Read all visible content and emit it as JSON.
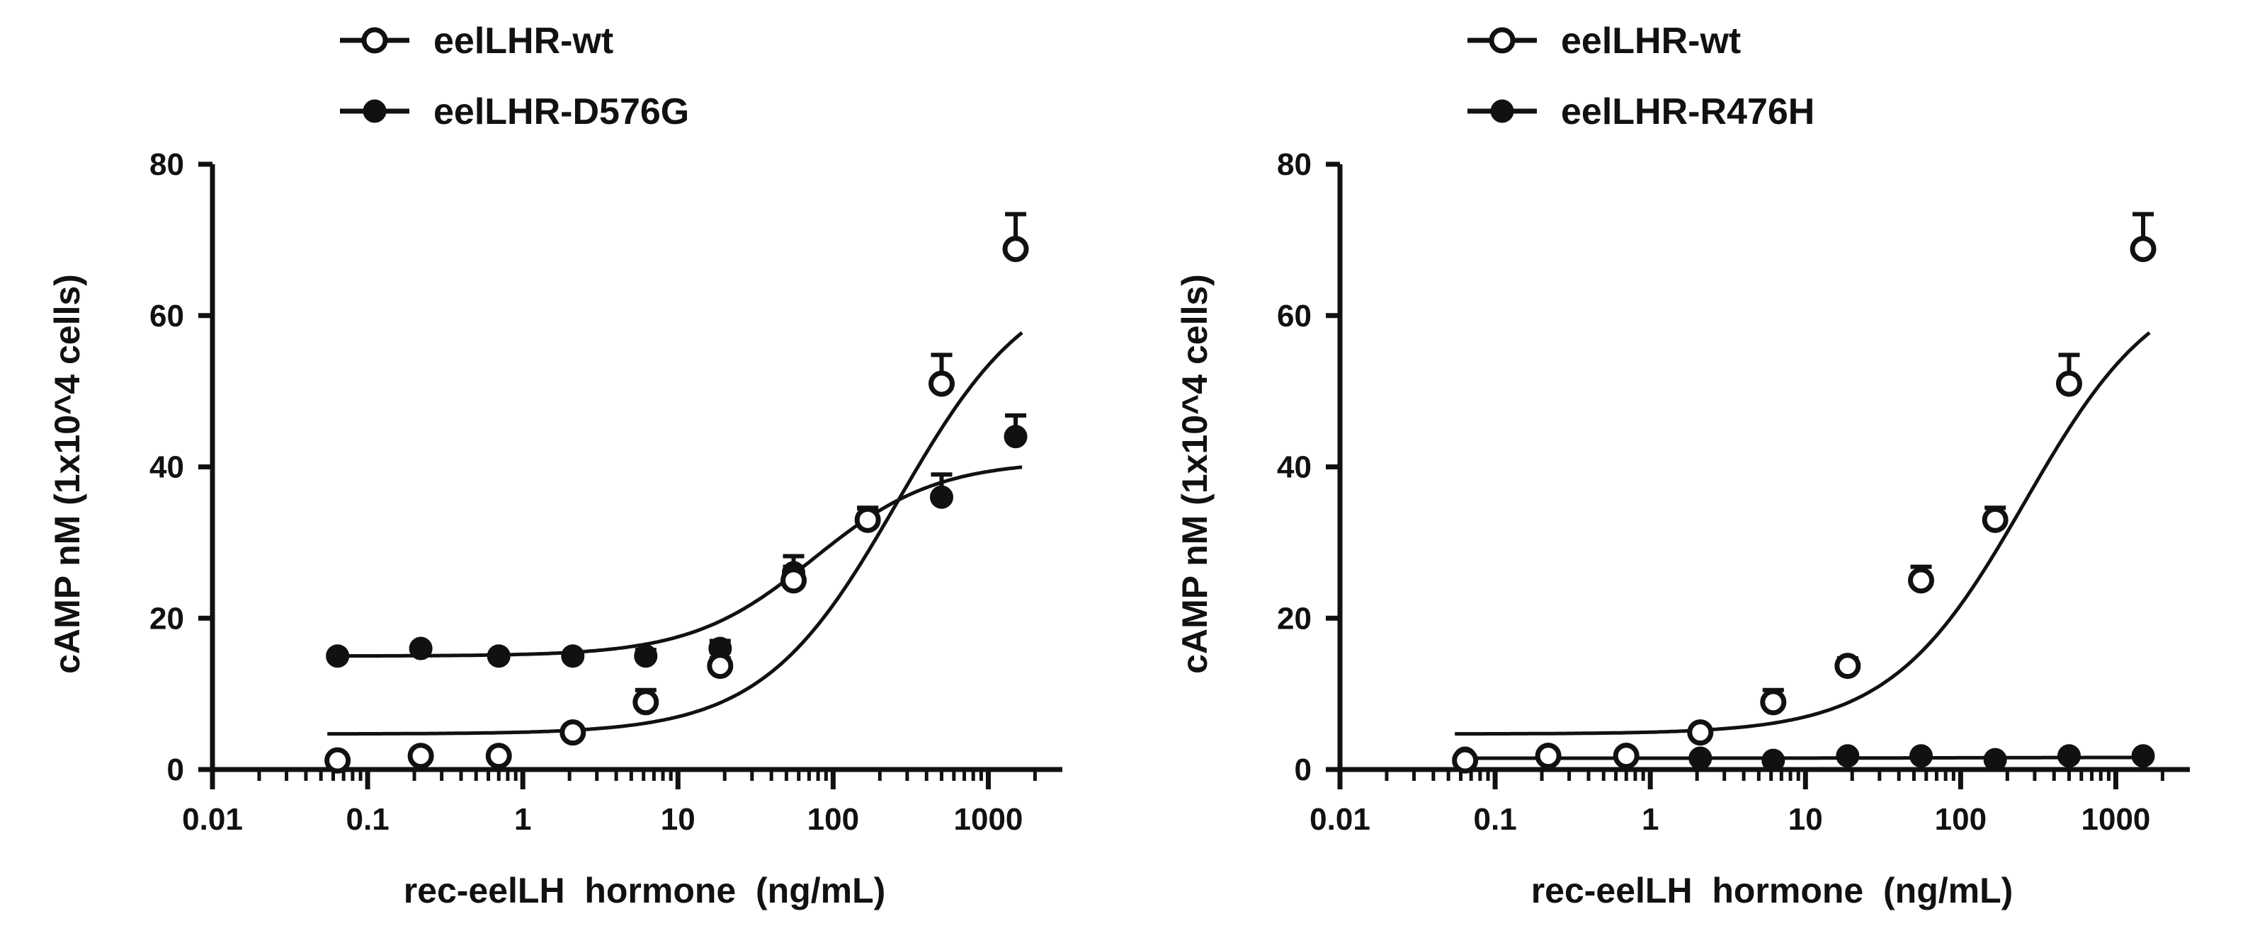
{
  "chart_data": [
    {
      "type": "scatter",
      "xscale": "log",
      "xlabel": "rec-eelLH  hormone  (ng/mL)",
      "ylabel": "cAMP nM (1x10^4 cells)",
      "xlim": [
        0.01,
        3000
      ],
      "ylim": [
        0,
        80
      ],
      "xticks": [
        0.01,
        0.1,
        1,
        10,
        100,
        1000
      ],
      "xtick_labels": [
        "0.01",
        "0.1",
        "1",
        "10",
        "100",
        "1000"
      ],
      "yticks": [
        0,
        20,
        40,
        60,
        80
      ],
      "ytick_labels": [
        "0",
        "20",
        "40",
        "60",
        "80"
      ],
      "legend_position": "top-left",
      "series": [
        {
          "name": "eelLHR-wt",
          "marker": "open-circle",
          "x": [
            0.064,
            0.22,
            0.7,
            2.1,
            6.2,
            18.7,
            55.6,
            167,
            500,
            1500
          ],
          "y": [
            1.2,
            1.8,
            1.8,
            4.9,
            8.9,
            13.7,
            25.0,
            33.0,
            51.0,
            68.8
          ],
          "err": [
            0.3,
            0.3,
            0.3,
            0.5,
            1.6,
            1.0,
            1.8,
            1.6,
            3.8,
            4.6
          ],
          "fit": {
            "bottom": 4.7,
            "top": 66.1,
            "ec50": 260,
            "hill": 1.0
          }
        },
        {
          "name": "eelLHR-D576G",
          "marker": "filled-circle",
          "x": [
            0.064,
            0.22,
            0.7,
            2.1,
            6.2,
            18.7,
            55.6,
            167,
            500,
            1500
          ],
          "y": [
            15.0,
            16.0,
            15.0,
            15.0,
            15.0,
            16.0,
            26.0,
            33.0,
            36.0,
            44.0
          ],
          "err": [
            0.3,
            0.3,
            0.3,
            0.3,
            0.8,
            1.0,
            2.2,
            1.5,
            3.0,
            2.8
          ],
          "fit": {
            "bottom": 15.0,
            "top": 40.8,
            "ec50": 75,
            "hill": 1.1
          }
        }
      ]
    },
    {
      "type": "scatter",
      "xscale": "log",
      "xlabel": "rec-eelLH  hormone  (ng/mL)",
      "ylabel": "cAMP nM (1x10^4 cells)",
      "xlim": [
        0.01,
        3000
      ],
      "ylim": [
        0,
        80
      ],
      "xticks": [
        0.01,
        0.1,
        1,
        10,
        100,
        1000
      ],
      "xtick_labels": [
        "0.01",
        "0.1",
        "1",
        "10",
        "100",
        "1000"
      ],
      "yticks": [
        0,
        20,
        40,
        60,
        80
      ],
      "ytick_labels": [
        "0",
        "20",
        "40",
        "60",
        "80"
      ],
      "legend_position": "top-left",
      "series": [
        {
          "name": "eelLHR-wt",
          "marker": "open-circle",
          "x": [
            0.064,
            0.22,
            0.7,
            2.1,
            6.2,
            18.7,
            55.6,
            167,
            500,
            1500
          ],
          "y": [
            1.2,
            1.8,
            1.8,
            4.9,
            8.9,
            13.7,
            25.0,
            33.0,
            51.0,
            68.8
          ],
          "err": [
            0.3,
            0.3,
            0.3,
            0.5,
            1.6,
            1.0,
            1.8,
            1.6,
            3.8,
            4.6
          ],
          "fit": {
            "bottom": 4.7,
            "top": 66.1,
            "ec50": 260,
            "hill": 1.0
          }
        },
        {
          "name": "eelLHR-R476H",
          "marker": "filled-circle",
          "x": [
            0.064,
            0.22,
            0.7,
            2.1,
            6.2,
            18.7,
            55.6,
            167,
            500,
            1500
          ],
          "y": [
            1.5,
            2.0,
            2.0,
            1.5,
            1.2,
            1.8,
            1.8,
            1.3,
            1.8,
            1.8
          ],
          "err": [
            0.3,
            0.3,
            0.3,
            0.3,
            0.3,
            0.3,
            0.3,
            0.3,
            0.3,
            0.3
          ],
          "fit": {
            "bottom": 1.5,
            "top": 1.6,
            "ec50": 100,
            "hill": 1.0
          }
        }
      ]
    }
  ]
}
